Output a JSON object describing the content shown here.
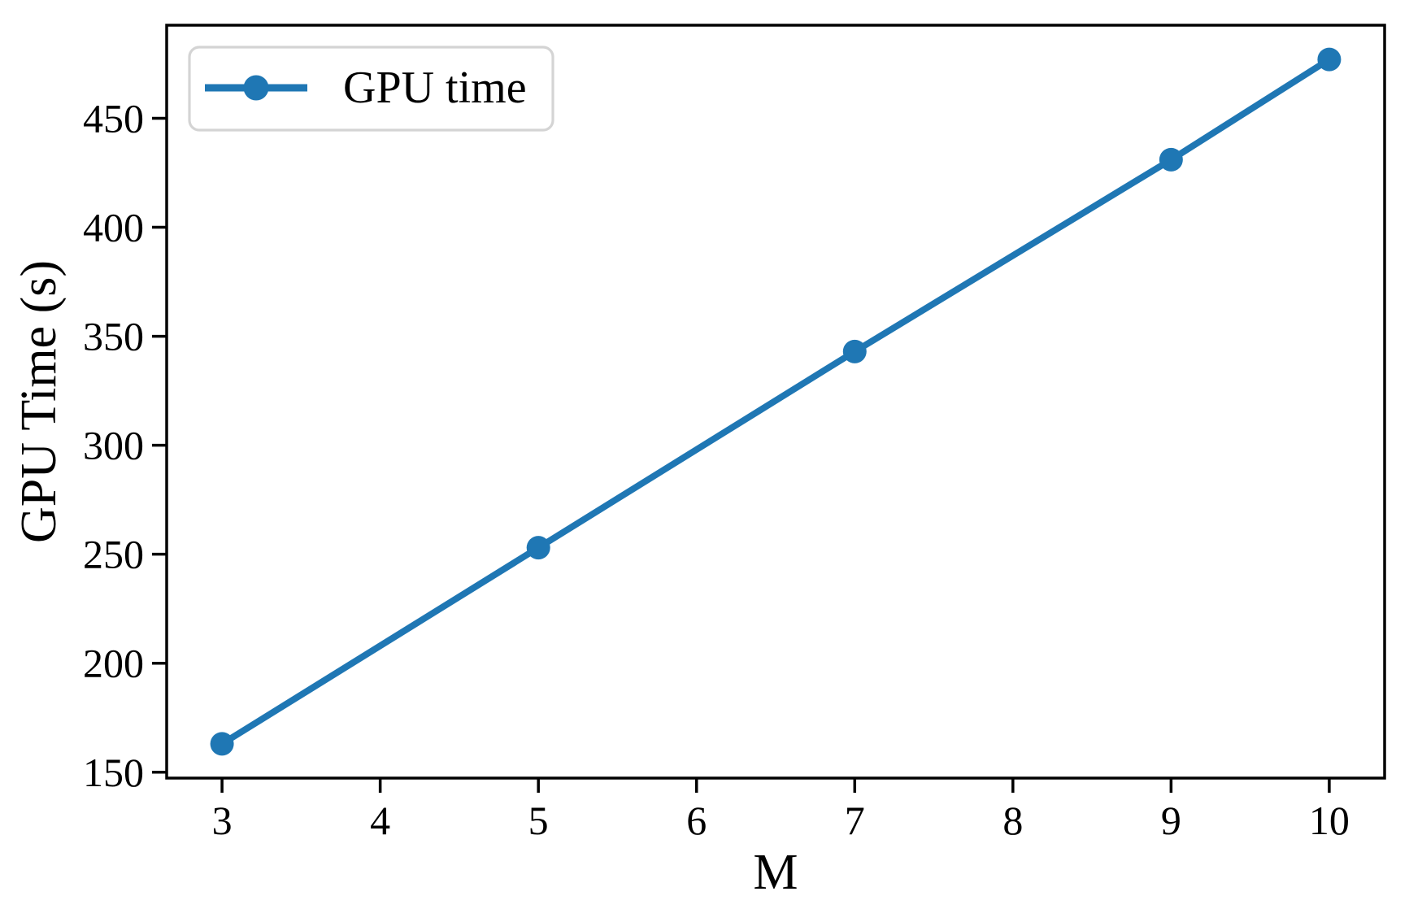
{
  "chart_data": {
    "type": "line",
    "title": "",
    "xlabel": "M",
    "ylabel": "GPU Time (s)",
    "x": [
      3,
      5,
      7,
      9,
      10
    ],
    "series": [
      {
        "name": "GPU time",
        "color": "#1f77b4",
        "marker": "circle",
        "values": [
          163,
          253,
          343,
          431,
          477
        ]
      }
    ],
    "xticks": [
      3,
      4,
      5,
      6,
      7,
      8,
      9,
      10
    ],
    "yticks": [
      150,
      200,
      250,
      300,
      350,
      400,
      450
    ],
    "xlim": [
      2.65,
      10.35
    ],
    "ylim": [
      147.3,
      492.7
    ],
    "grid": false,
    "background": "#ffffff",
    "spine_color": "#000000",
    "legend": {
      "label": "GPU time",
      "position": "upper left",
      "border_color": "#d4d4d4"
    }
  }
}
